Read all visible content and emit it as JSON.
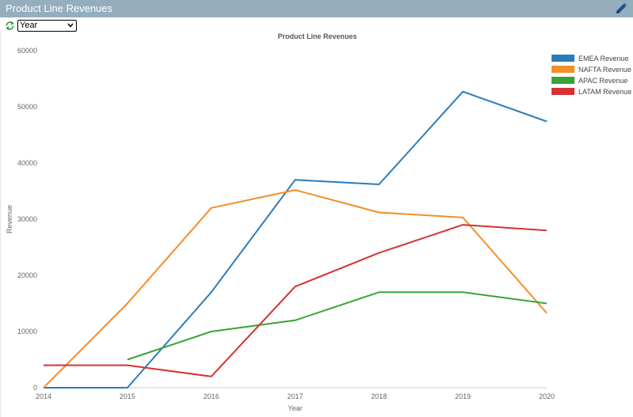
{
  "header": {
    "title": "Product Line Revenues",
    "edit_icon": "pencil-icon"
  },
  "toolbar": {
    "refresh_icon": "refresh-icon",
    "select_value": "Year"
  },
  "colors": {
    "title_bar": "#94aebe",
    "emea": "#2b7bb9",
    "nafta": "#f28e2b",
    "apac": "#38a338",
    "latam": "#d63232"
  },
  "chart_data": {
    "type": "line",
    "title": "Product Line Revenues",
    "xlabel": "Year",
    "ylabel": "Revenue",
    "x": [
      "2014",
      "2015",
      "2016",
      "2017",
      "2018",
      "2019",
      "2020"
    ],
    "ylim": [
      0,
      60000
    ],
    "yticks": [
      "0",
      "10000",
      "20000",
      "30000",
      "40000",
      "50000",
      "60000"
    ],
    "legend_position": "top-right",
    "grid": false,
    "series": [
      {
        "name": "EMEA Revenue",
        "color": "#2b7bb9",
        "values": [
          0,
          0,
          17000,
          37000,
          36200,
          52700,
          47400
        ]
      },
      {
        "name": "NAFTA Revenue",
        "color": "#f28e2b",
        "values": [
          0,
          15000,
          32000,
          35200,
          31200,
          30300,
          13300
        ]
      },
      {
        "name": "APAC Revenue",
        "color": "#38a338",
        "values": [
          null,
          5000,
          10000,
          12000,
          17000,
          17000,
          15000
        ]
      },
      {
        "name": "LATAM Revenue",
        "color": "#d63232",
        "values": [
          4000,
          4000,
          2000,
          18000,
          24000,
          29000,
          28000
        ]
      }
    ]
  }
}
